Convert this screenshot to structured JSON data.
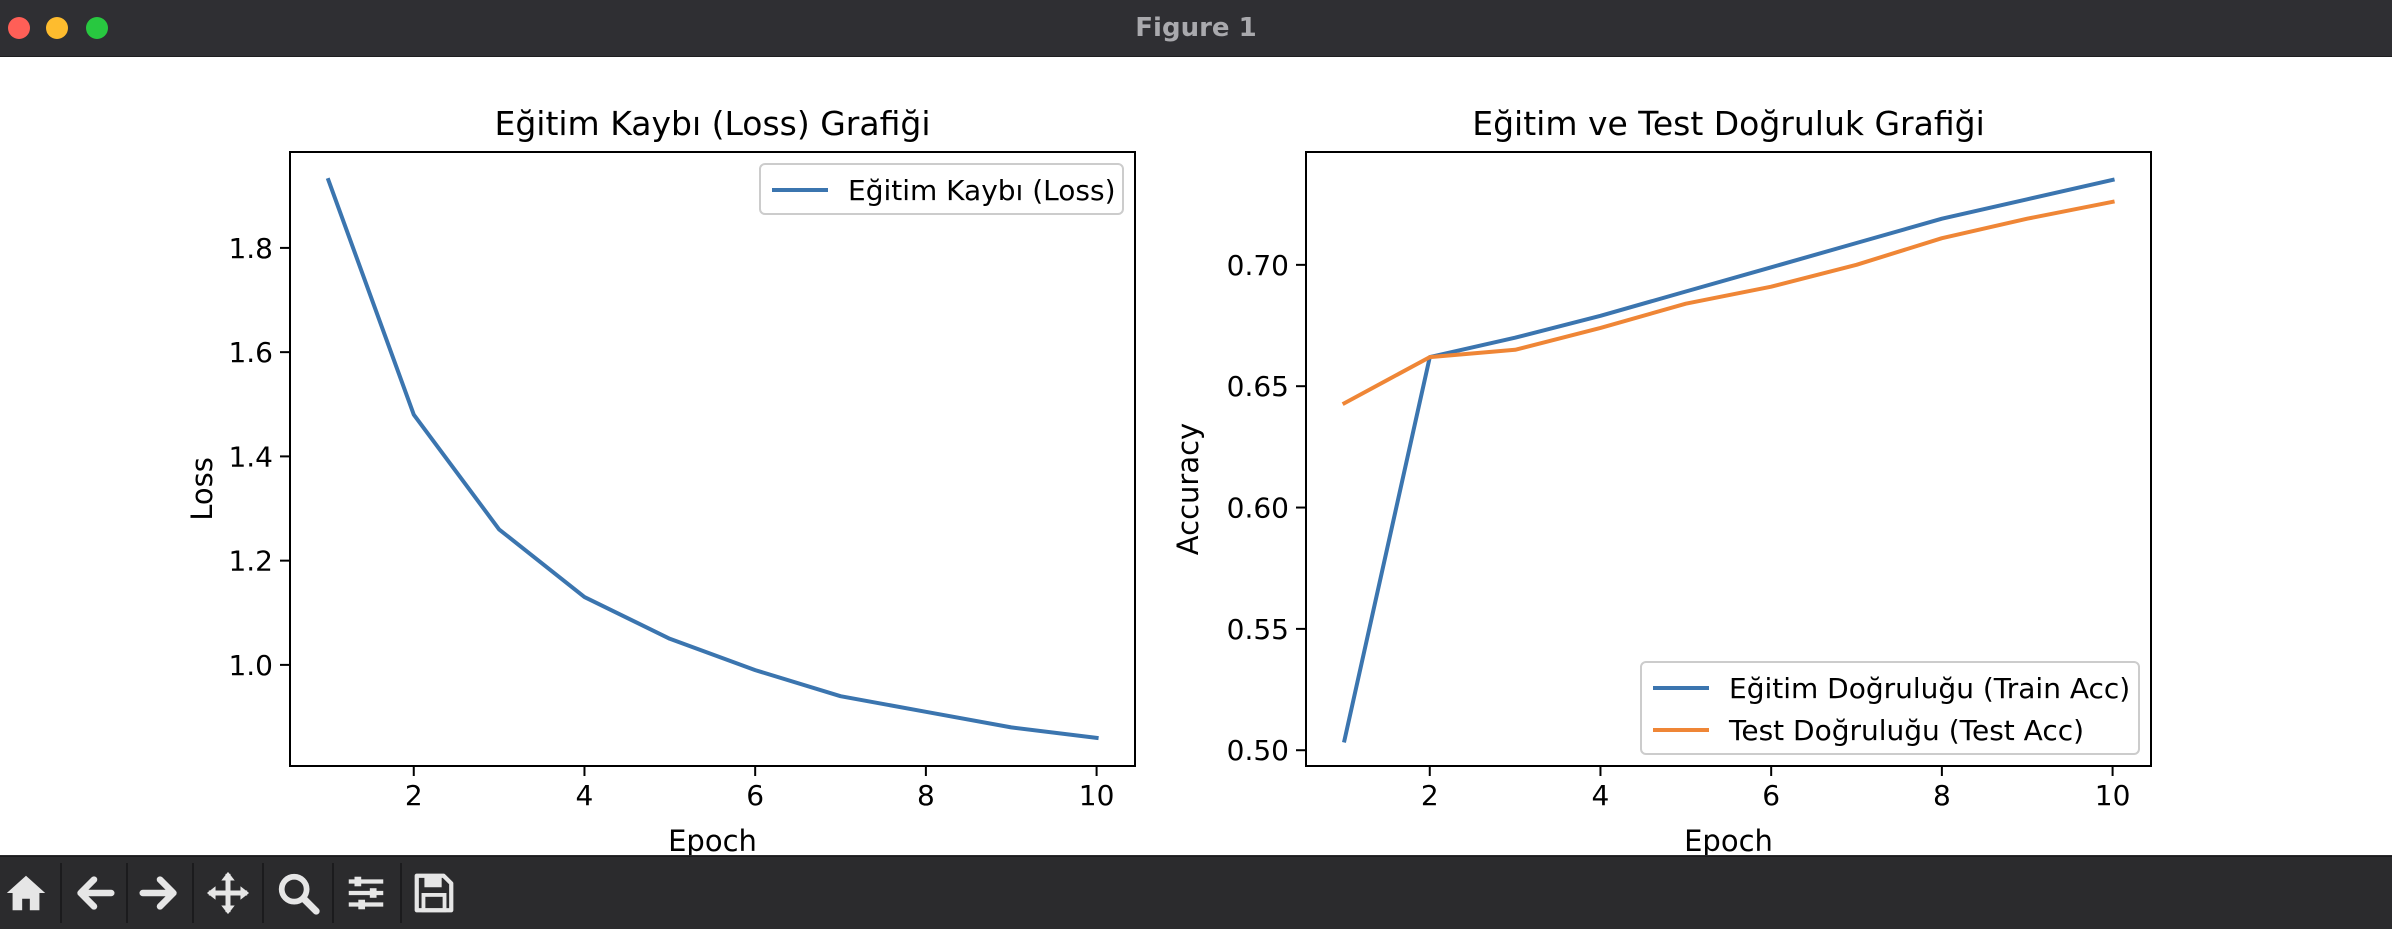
{
  "window": {
    "title": "Figure 1",
    "traffic_lights": [
      {
        "name": "close",
        "color": "#ff5f57"
      },
      {
        "name": "minimize",
        "color": "#febc2e"
      },
      {
        "name": "maximize",
        "color": "#28c840"
      }
    ]
  },
  "toolbar": {
    "buttons": [
      {
        "name": "home-icon",
        "label": "Home"
      },
      {
        "name": "back-arrow-icon",
        "label": "Back"
      },
      {
        "name": "forward-arrow-icon",
        "label": "Forward"
      },
      {
        "name": "pan-move-icon",
        "label": "Pan"
      },
      {
        "name": "zoom-magnifier-icon",
        "label": "Zoom"
      },
      {
        "name": "configure-subplots-icon",
        "label": "Subplots"
      },
      {
        "name": "save-floppy-icon",
        "label": "Save"
      }
    ],
    "icon_color": "#e6e6e6"
  },
  "chart_data": [
    {
      "type": "line",
      "title": "Eğitim Kaybı (Loss) Grafiği",
      "xlabel": "Epoch",
      "ylabel": "Loss",
      "xlim": [
        0.55,
        10.45
      ],
      "ylim": [
        0.806,
        1.984
      ],
      "xticks": [
        2,
        4,
        6,
        8,
        10
      ],
      "yticks": [
        1.0,
        1.2,
        1.4,
        1.6,
        1.8
      ],
      "ytick_labels": [
        "1.0",
        "1.2",
        "1.4",
        "1.6",
        "1.8"
      ],
      "grid": false,
      "legend": "upper right",
      "x": [
        1,
        2,
        3,
        4,
        5,
        6,
        7,
        8,
        9,
        10
      ],
      "series": [
        {
          "name": "Eğitim Kaybı (Loss)",
          "color": "#3b75af",
          "values": [
            1.93,
            1.48,
            1.26,
            1.13,
            1.05,
            0.99,
            0.94,
            0.91,
            0.88,
            0.86
          ]
        }
      ]
    },
    {
      "type": "line",
      "title": "Eğitim ve Test Doğruluk Grafiği",
      "xlabel": "Epoch",
      "ylabel": "Accuracy",
      "xlim": [
        0.55,
        10.45
      ],
      "ylim": [
        0.4935,
        0.7465
      ],
      "xticks": [
        2,
        4,
        6,
        8,
        10
      ],
      "yticks": [
        0.5,
        0.55,
        0.6,
        0.65,
        0.7
      ],
      "ytick_labels": [
        "0.50",
        "0.55",
        "0.60",
        "0.65",
        "0.70"
      ],
      "grid": false,
      "legend": "lower right",
      "x": [
        1,
        2,
        3,
        4,
        5,
        6,
        7,
        8,
        9,
        10
      ],
      "series": [
        {
          "name": "Eğitim Doğruluğu (Train Acc)",
          "color": "#3b75af",
          "values": [
            0.504,
            0.662,
            0.67,
            0.679,
            0.689,
            0.699,
            0.709,
            0.719,
            0.727,
            0.735
          ]
        },
        {
          "name": "Test Doğruluğu (Test Acc)",
          "color": "#ef8636",
          "values": [
            0.643,
            0.662,
            0.665,
            0.674,
            0.684,
            0.691,
            0.7,
            0.711,
            0.719,
            0.726
          ]
        }
      ]
    }
  ]
}
